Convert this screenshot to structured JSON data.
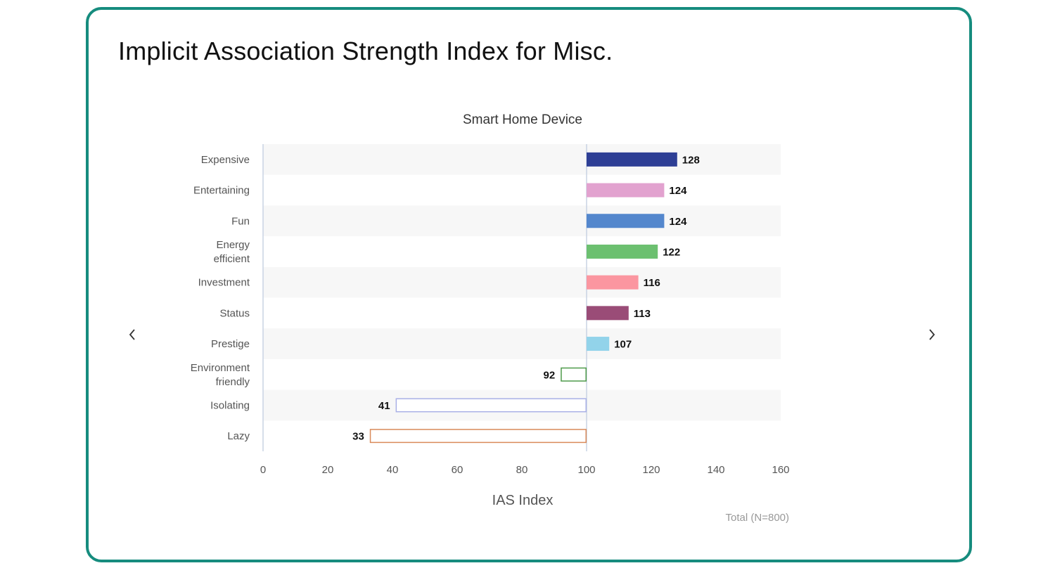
{
  "page": {
    "title": "Implicit Association Strength Index for Misc."
  },
  "nav": {
    "prev_icon": "chevron-left-icon",
    "next_icon": "chevron-right-icon"
  },
  "chart_data": {
    "type": "bar",
    "orientation": "horizontal",
    "title": "Smart Home Device",
    "xlabel": "IAS Index",
    "ylabel": "",
    "baseline": 100,
    "xlim": [
      0,
      160
    ],
    "xticks": [
      0,
      20,
      40,
      60,
      80,
      100,
      120,
      140,
      160
    ],
    "grid": false,
    "legend": "none",
    "footnote": "Total (N=800)",
    "categories": [
      [
        "Expensive"
      ],
      [
        "Entertaining"
      ],
      [
        "Fun"
      ],
      [
        "Energy",
        "efficient"
      ],
      [
        "Investment"
      ],
      [
        "Status"
      ],
      [
        "Prestige"
      ],
      [
        "Environment",
        "friendly"
      ],
      [
        "Isolating"
      ],
      [
        "Lazy"
      ]
    ],
    "values": [
      128,
      124,
      124,
      122,
      116,
      113,
      107,
      92,
      41,
      33
    ],
    "colors": [
      "#2e3f95",
      "#e2a2cf",
      "#5487cd",
      "#6cc070",
      "#fb96a0",
      "#9a4c77",
      "#92d3ea",
      "#4e9a4a",
      "#a9b0e6",
      "#d98a5a"
    ],
    "styles": [
      "filled",
      "filled",
      "filled",
      "filled",
      "filled",
      "filled",
      "filled",
      "outline",
      "outline",
      "outline"
    ]
  }
}
